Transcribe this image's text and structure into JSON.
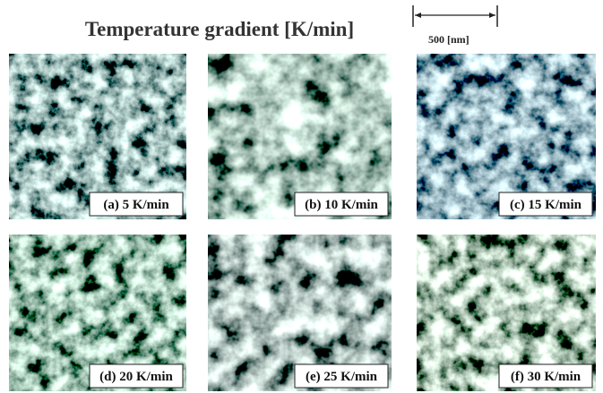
{
  "header": {
    "title": "Temperature gradient [K/min]",
    "scale_bar": "500 [nm]"
  },
  "panels": [
    {
      "label": "(a) 5 K/min"
    },
    {
      "label": "(b) 10 K/min"
    },
    {
      "label": "(c) 15 K/min"
    },
    {
      "label": "(d) 20 K/min"
    },
    {
      "label": "(e) 25 K/min"
    },
    {
      "label": "(f) 30 K/min"
    }
  ]
}
